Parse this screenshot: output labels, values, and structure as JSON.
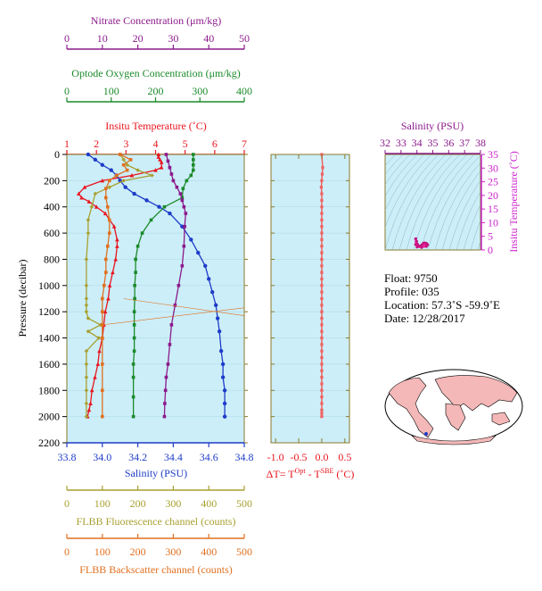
{
  "colors": {
    "nitrate": "#8b1a8b",
    "oxygen": "#1a8a2a",
    "temperature": "#e8141e",
    "salinity": "#1e3cc8",
    "fluorescence": "#a8a030",
    "backscatter": "#e07020",
    "delta": "#f06060",
    "plot_bg": "#cceef8",
    "frame": "#8a7a2a"
  },
  "axes": {
    "nitrate": {
      "label": "Nitrate Concentration (μm/kg)",
      "ticks": [
        "0",
        "10",
        "20",
        "30",
        "40",
        "50"
      ]
    },
    "oxygen": {
      "label": "Optode Oxygen Concentration (μm/kg)",
      "ticks": [
        "0",
        "100",
        "200",
        "300",
        "400"
      ]
    },
    "temperature": {
      "label": "Insitu Temperature (˚C)",
      "ticks": [
        "1",
        "2",
        "3",
        "4",
        "5",
        "6",
        "7"
      ]
    },
    "pressure": {
      "label": "Pressure (decibar)",
      "ticks": [
        "0",
        "200",
        "400",
        "600",
        "800",
        "1000",
        "1200",
        "1400",
        "1600",
        "1800",
        "2000",
        "2200"
      ]
    },
    "salinity": {
      "label": "Salinity (PSU)",
      "ticks": [
        "33.8",
        "34.0",
        "34.2",
        "34.4",
        "34.6",
        "34.8"
      ]
    },
    "fluorescence": {
      "label": "FLBB Fluorescence channel (counts)",
      "ticks": [
        "0",
        "100",
        "200",
        "300",
        "400",
        "500"
      ]
    },
    "backscatter": {
      "label": "FLBB Backscatter channel (counts)",
      "ticks": [
        "0",
        "100",
        "200",
        "300",
        "400",
        "500"
      ]
    },
    "delta": {
      "label_prefix": "ΔT= T",
      "sup1": "Opt",
      "mid": " - T",
      "sup2": "SBE",
      "suffix": " (˚C)",
      "ticks": [
        "-1.0",
        "-0.5",
        "0.0",
        "0.5"
      ]
    },
    "ts_salinity": {
      "label": "Salinity (PSU)",
      "ticks": [
        "32",
        "33",
        "34",
        "35",
        "36",
        "37",
        "38"
      ]
    },
    "ts_temperature": {
      "label": "Insitu Temperature (˚C)",
      "ticks": [
        "0",
        "5",
        "10",
        "15",
        "20",
        "25",
        "30",
        "35"
      ]
    }
  },
  "info": {
    "float": "Float:  9750",
    "profile": "Profile:  035",
    "location": "Location:  57.3˚S  -59.9˚E",
    "date": "Date:  12/28/2017"
  },
  "chart_data": [
    {
      "type": "line",
      "title": "",
      "ylabel": "Pressure (decibar)",
      "ylim": [
        2200,
        0
      ],
      "series": [
        {
          "name": "Insitu Temperature (˚C)",
          "xlim": [
            1,
            7
          ],
          "x": [
            4.1,
            4.1,
            4.15,
            4.2,
            4.2,
            4.0,
            3.2,
            2.2,
            1.6,
            1.4,
            1.5,
            1.75,
            2.0,
            2.3,
            2.6,
            2.7,
            2.7,
            2.65,
            2.55,
            2.45,
            2.4,
            2.3,
            2.25,
            2.2,
            2.1,
            2.05,
            1.95,
            1.85,
            1.8,
            1.75,
            1.7
          ],
          "y": [
            0,
            20,
            40,
            60,
            100,
            120,
            160,
            200,
            250,
            300,
            330,
            360,
            400,
            450,
            550,
            650,
            700,
            800,
            900,
            1000,
            1100,
            1200,
            1300,
            1400,
            1500,
            1600,
            1700,
            1800,
            1900,
            1950,
            2000
          ]
        },
        {
          "name": "Salinity (PSU)",
          "xlim": [
            33.8,
            34.8
          ],
          "x": [
            33.92,
            33.96,
            34.0,
            34.05,
            34.08,
            34.1,
            34.13,
            34.18,
            34.25,
            34.32,
            34.38,
            34.45,
            34.5,
            34.54,
            34.58,
            34.6,
            34.62,
            34.64,
            34.65,
            34.66,
            34.67,
            34.68,
            34.68,
            34.69,
            34.69,
            34.69
          ],
          "y": [
            0,
            40,
            80,
            120,
            160,
            200,
            250,
            300,
            350,
            400,
            450,
            550,
            650,
            750,
            850,
            950,
            1050,
            1150,
            1250,
            1350,
            1500,
            1600,
            1700,
            1800,
            1900,
            2000
          ]
        },
        {
          "name": "Optode Oxygen Concentration (μm/kg)",
          "xlim": [
            0,
            400
          ],
          "x": [
            285,
            285,
            285,
            285,
            280,
            270,
            262,
            260,
            220,
            190,
            170,
            160,
            155,
            155,
            153,
            153,
            152,
            152,
            152,
            152,
            150,
            150,
            150,
            150
          ],
          "y": [
            0,
            40,
            80,
            120,
            160,
            200,
            260,
            330,
            400,
            500,
            600,
            700,
            800,
            900,
            1000,
            1100,
            1200,
            1300,
            1400,
            1500,
            1600,
            1700,
            1850,
            2000
          ]
        },
        {
          "name": "Nitrate Concentration (μm/kg)",
          "xlim": [
            0,
            50
          ],
          "x": [
            28,
            28.5,
            29,
            29.5,
            30,
            31,
            32,
            32.5,
            33,
            33.5,
            33.2,
            33,
            32.5,
            31.5,
            30.5,
            29.5,
            29,
            28.5,
            28,
            27.8,
            27.6,
            27.5
          ],
          "y": [
            0,
            50,
            100,
            150,
            200,
            250,
            300,
            350,
            400,
            450,
            550,
            700,
            850,
            1000,
            1150,
            1300,
            1450,
            1600,
            1700,
            1800,
            1900,
            2000
          ]
        },
        {
          "name": "FLBB Fluorescence channel (counts)",
          "xlim": [
            0,
            500
          ],
          "x": [
            150,
            160,
            170,
            200,
            240,
            160,
            120,
            80,
            70,
            60,
            60,
            55,
            55,
            55,
            55,
            55,
            60,
            95,
            60,
            90,
            55,
            55,
            55,
            55,
            55,
            55
          ],
          "y": [
            0,
            40,
            80,
            120,
            160,
            200,
            250,
            300,
            400,
            500,
            600,
            800,
            1000,
            1100,
            1150,
            1200,
            1250,
            1300,
            1350,
            1400,
            1500,
            1600,
            1700,
            1800,
            1900,
            2000
          ]
        },
        {
          "name": "FLBB Backscatter channel (counts)",
          "xlim": [
            0,
            500
          ],
          "x": [
            150,
            180,
            160,
            170,
            140,
            120,
            110,
            110,
            115,
            120,
            120,
            115,
            110,
            110,
            105,
            100,
            100,
            100,
            100,
            100,
            100,
            100
          ],
          "y": [
            0,
            40,
            80,
            120,
            160,
            200,
            260,
            330,
            400,
            500,
            600,
            700,
            800,
            900,
            1000,
            1100,
            1200,
            1300,
            1400,
            1600,
            1800,
            2000
          ]
        }
      ]
    },
    {
      "type": "line",
      "title": "",
      "xlabel": "ΔT= TOpt - TSBE (˚C)",
      "ylabel": "",
      "xlim": [
        -1.1,
        0.6
      ],
      "ylim": [
        2200,
        0
      ],
      "series": [
        {
          "name": "",
          "x": [
            0.0,
            0.02,
            0.01,
            0.0,
            -0.01,
            0.0,
            0.0,
            0.0,
            0.0,
            0.0,
            0.0,
            0.0,
            0.0,
            0.0,
            0.0,
            0.0,
            0.0,
            0.0,
            0.0,
            0.0,
            0.0,
            0.0,
            0.0,
            0.0,
            0.0,
            0.0,
            0.0,
            0.0,
            0.0,
            0.0,
            0.0,
            0.0,
            0.0,
            0.0,
            0.0,
            0.0,
            0.0,
            0.0,
            0.0,
            0.0,
            0.0
          ],
          "y": [
            0,
            100,
            150,
            200,
            250,
            300,
            350,
            400,
            450,
            500,
            550,
            600,
            650,
            700,
            750,
            800,
            850,
            900,
            950,
            1000,
            1050,
            1100,
            1150,
            1200,
            1250,
            1300,
            1350,
            1400,
            1450,
            1500,
            1550,
            1600,
            1650,
            1700,
            1750,
            1800,
            1850,
            1900,
            1950,
            1975,
            2000
          ]
        }
      ]
    },
    {
      "type": "scatter",
      "title": "",
      "xlabel": "Salinity (PSU)",
      "ylabel": "Insitu Temperature (˚C)",
      "xlim": [
        32,
        38
      ],
      "ylim": [
        0,
        35
      ],
      "series": [
        {
          "name": "",
          "x": [
            33.9,
            33.95,
            34.0,
            34.05,
            34.1,
            34.2,
            34.3,
            34.4,
            34.5,
            34.6,
            34.66,
            34.69,
            34.6,
            34.3,
            34.0,
            33.9
          ],
          "y": [
            4.1,
            4.2,
            3.2,
            2.2,
            1.6,
            1.5,
            2.0,
            2.6,
            2.7,
            2.5,
            2.2,
            1.8,
            1.2,
            0.8,
            1.0,
            2.0
          ]
        }
      ]
    }
  ]
}
